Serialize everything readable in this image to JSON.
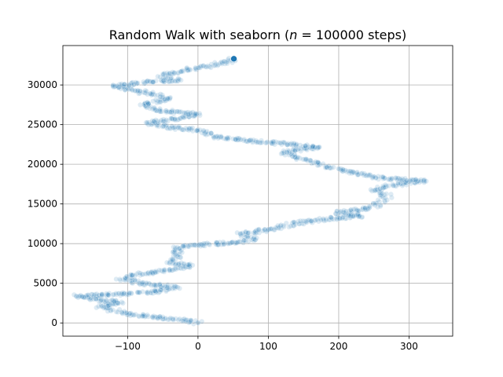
{
  "chart_data": {
    "type": "scatter",
    "title_prefix": "Random Walk with seaborn (",
    "title_var": "n",
    "title_suffix": " = 100000 steps)",
    "xlabel": "",
    "ylabel": "",
    "xlim": [
      -192,
      362
    ],
    "ylim": [
      -1665,
      34965
    ],
    "grid": true,
    "x_ticks": [
      -100,
      0,
      100,
      200,
      300
    ],
    "y_ticks": [
      0,
      5000,
      10000,
      15000,
      20000,
      25000,
      30000
    ],
    "series": [
      {
        "color": "#1f77b4",
        "point_alpha": 0.15,
        "path_points": [
          {
            "x": 0,
            "y": 0
          },
          {
            "x": -20,
            "y": 300
          },
          {
            "x": -60,
            "y": 700
          },
          {
            "x": -100,
            "y": 1100
          },
          {
            "x": -120,
            "y": 1600
          },
          {
            "x": -140,
            "y": 2100
          },
          {
            "x": -110,
            "y": 2600
          },
          {
            "x": -150,
            "y": 3000
          },
          {
            "x": -170,
            "y": 3400
          },
          {
            "x": -120,
            "y": 3600
          },
          {
            "x": -60,
            "y": 3900
          },
          {
            "x": -30,
            "y": 4500
          },
          {
            "x": -80,
            "y": 5000
          },
          {
            "x": -110,
            "y": 5600
          },
          {
            "x": -90,
            "y": 6100
          },
          {
            "x": -40,
            "y": 6600
          },
          {
            "x": -10,
            "y": 7200
          },
          {
            "x": -40,
            "y": 7600
          },
          {
            "x": -30,
            "y": 8300
          },
          {
            "x": -30,
            "y": 8900
          },
          {
            "x": -30,
            "y": 9500
          },
          {
            "x": 10,
            "y": 9900
          },
          {
            "x": 50,
            "y": 10100
          },
          {
            "x": 80,
            "y": 10500
          },
          {
            "x": 60,
            "y": 11200
          },
          {
            "x": 100,
            "y": 11800
          },
          {
            "x": 130,
            "y": 12400
          },
          {
            "x": 170,
            "y": 13000
          },
          {
            "x": 230,
            "y": 13500
          },
          {
            "x": 200,
            "y": 13900
          },
          {
            "x": 240,
            "y": 14400
          },
          {
            "x": 260,
            "y": 15100
          },
          {
            "x": 270,
            "y": 16000
          },
          {
            "x": 250,
            "y": 16800
          },
          {
            "x": 280,
            "y": 17400
          },
          {
            "x": 320,
            "y": 17900
          },
          {
            "x": 260,
            "y": 18300
          },
          {
            "x": 230,
            "y": 18800
          },
          {
            "x": 200,
            "y": 19300
          },
          {
            "x": 170,
            "y": 20100
          },
          {
            "x": 140,
            "y": 20900
          },
          {
            "x": 120,
            "y": 21500
          },
          {
            "x": 170,
            "y": 22200
          },
          {
            "x": 110,
            "y": 22700
          },
          {
            "x": 60,
            "y": 23100
          },
          {
            "x": 20,
            "y": 23500
          },
          {
            "x": 10,
            "y": 24200
          },
          {
            "x": -40,
            "y": 24700
          },
          {
            "x": -70,
            "y": 25200
          },
          {
            "x": -30,
            "y": 25800
          },
          {
            "x": 0,
            "y": 26300
          },
          {
            "x": -60,
            "y": 26800
          },
          {
            "x": -80,
            "y": 27500
          },
          {
            "x": -40,
            "y": 28200
          },
          {
            "x": -60,
            "y": 28800
          },
          {
            "x": -90,
            "y": 29300
          },
          {
            "x": -120,
            "y": 29800
          },
          {
            "x": -80,
            "y": 30300
          },
          {
            "x": -30,
            "y": 30600
          },
          {
            "x": -50,
            "y": 31200
          },
          {
            "x": -20,
            "y": 31800
          },
          {
            "x": 10,
            "y": 32300
          },
          {
            "x": 40,
            "y": 32900
          },
          {
            "x": 51,
            "y": 33300
          }
        ],
        "last_point": {
          "x": 51,
          "y": 33300
        }
      }
    ]
  }
}
